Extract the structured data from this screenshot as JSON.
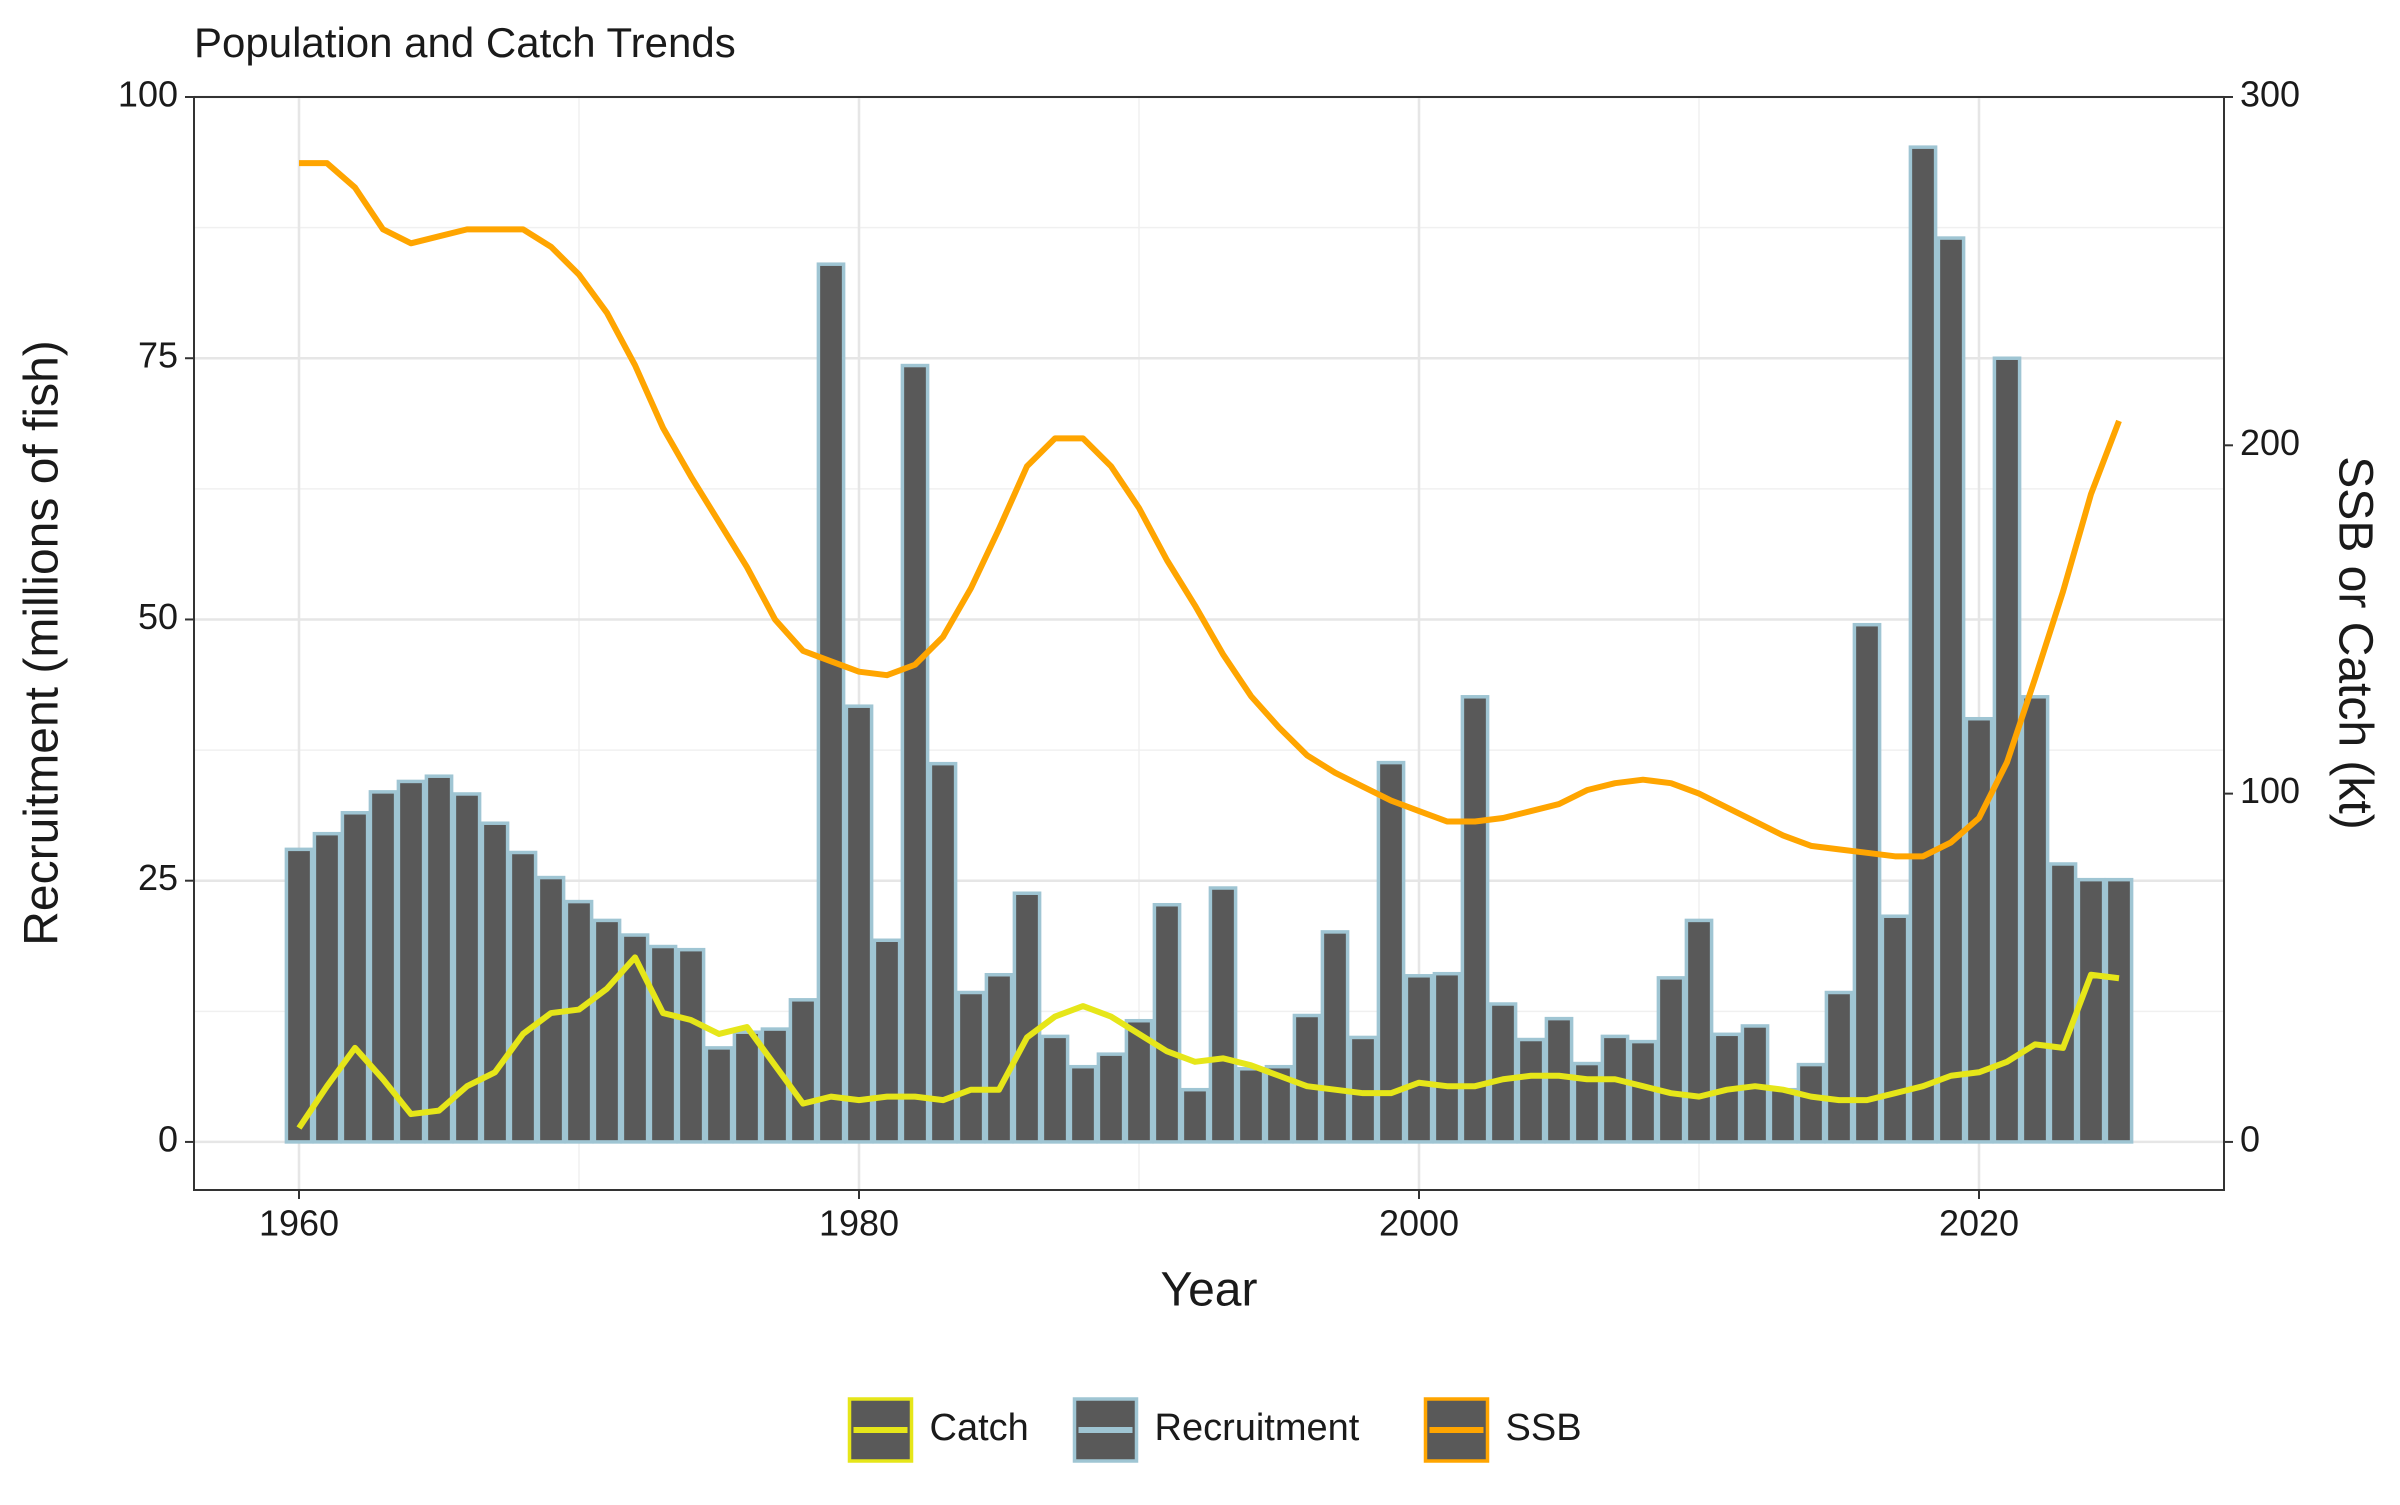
{
  "chart_data": {
    "type": "bar",
    "title": "Population and Catch Trends",
    "xlabel": "Year",
    "ylabel": "Recruitment (millions of fish)",
    "y2label": "SSB or Catch (kt)",
    "x": [
      1960,
      1961,
      1962,
      1963,
      1964,
      1965,
      1966,
      1967,
      1968,
      1969,
      1970,
      1971,
      1972,
      1973,
      1974,
      1975,
      1976,
      1977,
      1978,
      1979,
      1980,
      1981,
      1982,
      1983,
      1984,
      1985,
      1986,
      1987,
      1988,
      1989,
      1990,
      1991,
      1992,
      1993,
      1994,
      1995,
      1996,
      1997,
      1998,
      1999,
      2000,
      2001,
      2002,
      2003,
      2004,
      2005,
      2006,
      2007,
      2008,
      2009,
      2010,
      2011,
      2012,
      2013,
      2014,
      2015,
      2016,
      2017,
      2018,
      2019,
      2020,
      2021,
      2022,
      2023,
      2024,
      2025
    ],
    "series": [
      {
        "name": "Catch",
        "type": "line",
        "axis": "y2",
        "color": "#e6e619",
        "values": [
          4,
          16,
          27,
          18,
          8,
          9,
          16,
          20,
          31,
          37,
          38,
          44,
          53,
          37,
          35,
          31,
          33,
          22,
          11,
          13,
          12,
          13,
          13,
          12,
          15,
          15,
          30,
          36,
          39,
          36,
          31,
          26,
          23,
          24,
          22,
          19,
          16,
          15,
          14,
          14,
          17,
          16,
          16,
          18,
          19,
          19,
          18,
          18,
          16,
          14,
          13,
          15,
          16,
          15,
          13,
          12,
          12,
          14,
          16,
          19,
          20,
          23,
          28,
          27,
          48,
          47
        ]
      },
      {
        "name": "Recruitment",
        "type": "bar",
        "axis": "y",
        "color": "#9fc5d3",
        "fill": "#595959",
        "values": [
          28,
          29.5,
          31.5,
          33.5,
          34.5,
          35,
          33.3,
          30.5,
          27.7,
          25.3,
          23,
          21.2,
          19.8,
          18.7,
          18.4,
          9,
          10.5,
          10.8,
          13.6,
          84,
          41.7,
          19.3,
          74.3,
          36.2,
          14.3,
          16,
          23.8,
          10.1,
          7.2,
          8.4,
          11.6,
          22.7,
          5,
          24.3,
          7,
          7.2,
          12.1,
          20.1,
          10,
          36.3,
          15.9,
          16.1,
          42.6,
          13.2,
          9.8,
          11.8,
          7.5,
          10.1,
          9.6,
          15.7,
          21.2,
          10.3,
          11.1,
          5,
          7.4,
          14.3,
          49.5,
          21.6,
          95.2,
          86.5,
          40.5,
          75,
          42.6,
          26.6,
          25.1,
          25.1
        ]
      },
      {
        "name": "SSB",
        "type": "line",
        "axis": "y2",
        "color": "#ffa500",
        "values": [
          281,
          281,
          274,
          262,
          258,
          260,
          262,
          262,
          262,
          257,
          249,
          238,
          223,
          205,
          191,
          178,
          165,
          150,
          141,
          138,
          135,
          134,
          137,
          145,
          159,
          176,
          194,
          202,
          202,
          194,
          182,
          167,
          154,
          140,
          128,
          119,
          111,
          106,
          102,
          98,
          95,
          92,
          92,
          93,
          95,
          97,
          101,
          103,
          104,
          103,
          100,
          96,
          92,
          88,
          85,
          84,
          83,
          82,
          82,
          86,
          93,
          109,
          133,
          158,
          186,
          207
        ]
      }
    ],
    "xlim": [
      1956.25,
      2028.75
    ],
    "xticks": [
      1960,
      1980,
      2000,
      2020
    ],
    "ylim": [
      -4.6,
      100
    ],
    "yticks": [
      0,
      25,
      50,
      75,
      100
    ],
    "y2lim": [
      -13.8,
      300
    ],
    "y2ticks": [
      0,
      100,
      200,
      300
    ],
    "grid": true,
    "legend": "bottom"
  }
}
